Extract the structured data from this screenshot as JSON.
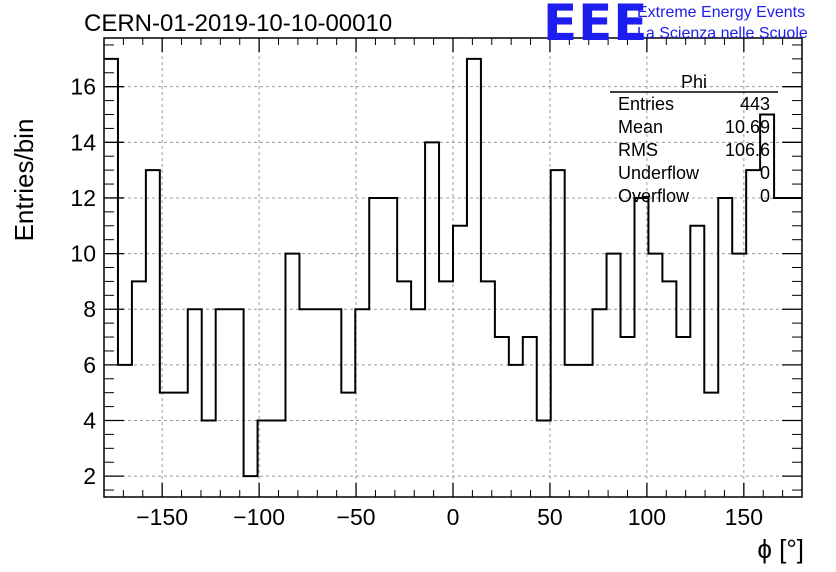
{
  "header": {
    "run_title": "CERN-01-2019-10-10-00010",
    "logo_text": "EEE",
    "logo_line1": "Extreme Energy Events",
    "logo_line2": "La Scienza nelle Scuole",
    "logo_color": "#1d1df0"
  },
  "stats_box": {
    "title": "Phi",
    "rows": [
      {
        "label": "Entries",
        "value": "443"
      },
      {
        "label": "Mean",
        "value": "10.69"
      },
      {
        "label": "RMS",
        "value": "106.6"
      },
      {
        "label": "Underflow",
        "value": "0"
      },
      {
        "label": "Overflow",
        "value": "0"
      }
    ]
  },
  "chart_data": {
    "type": "bar",
    "subtype": "histogram-step",
    "title": "",
    "xlabel": "ϕ [°]",
    "ylabel": "Entries/bin",
    "xlim": [
      -180,
      180
    ],
    "ylim": [
      1.25,
      17.75
    ],
    "bin_width": 7.2,
    "bin_low_edge": -180,
    "counts": [
      17,
      6,
      9,
      13,
      5,
      5,
      8,
      4,
      8,
      8,
      2,
      4,
      4,
      10,
      8,
      8,
      8,
      5,
      8,
      12,
      12,
      9,
      8,
      14,
      9,
      11,
      17,
      9,
      7,
      6,
      7,
      4,
      13,
      6,
      6,
      8,
      10,
      7,
      12,
      10,
      9,
      7,
      11,
      5,
      12,
      10,
      13,
      15,
      12,
      12
    ],
    "x_ticks": [
      -150,
      -100,
      -50,
      0,
      50,
      100,
      150
    ],
    "x_tick_labels": [
      "−150",
      "−100",
      "−50",
      "0",
      "50",
      "100",
      "150"
    ],
    "y_ticks": [
      2,
      4,
      6,
      8,
      10,
      12,
      14,
      16
    ],
    "y_tick_labels": [
      "2",
      "4",
      "6",
      "8",
      "10",
      "12",
      "14",
      "16"
    ],
    "grid": true,
    "line_color": "#000000"
  }
}
